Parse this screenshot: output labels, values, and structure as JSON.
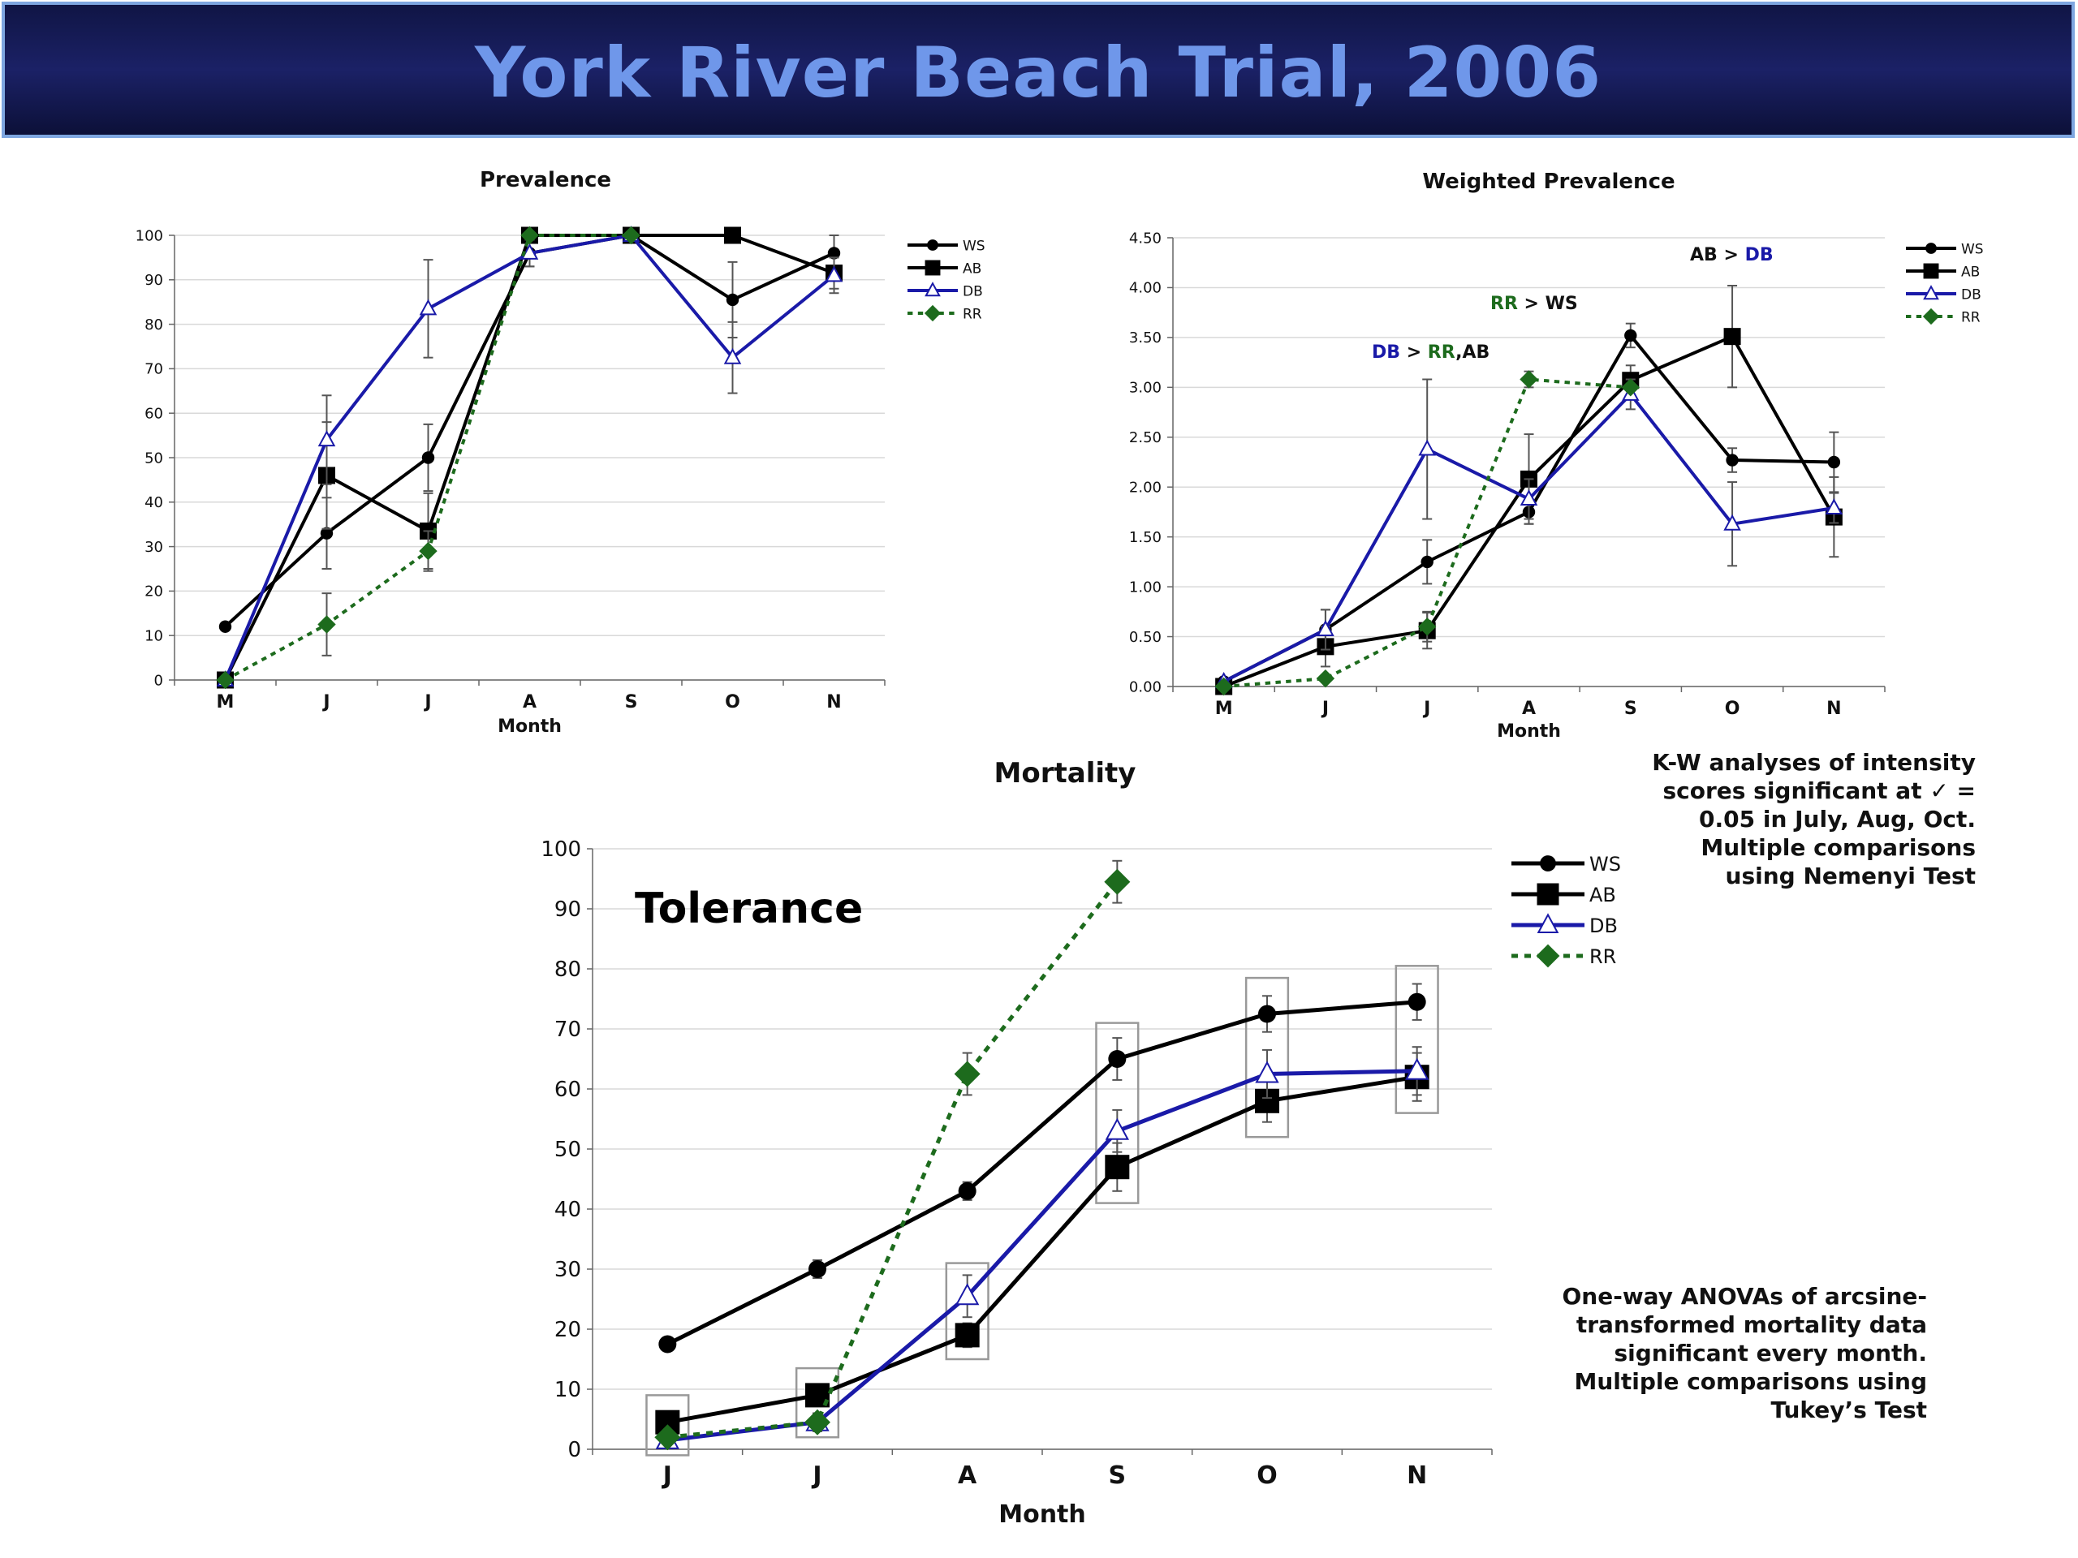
{
  "header": {
    "title": "York River Beach Trial, 2006"
  },
  "notes": {
    "kw": "K-W analyses of intensity scores significant at ✓ = 0.05 in July, Aug, Oct. Multiple comparisons using Nemenyi Test",
    "anova": "One-way ANOVAs of arcsine-transformed mortality data significant every month. Multiple comparisons using Tukey’s Test",
    "tolerance": "Tolerance"
  },
  "annotations": {
    "ab_db": {
      "a": "AB",
      "op": " > ",
      "b": "DB"
    },
    "rr_ws": {
      "a": "RR",
      "op": " > ",
      "b": "WS"
    },
    "db_rr_ab": {
      "a": "DB",
      "op": " > ",
      "b": "RR",
      "c": ",AB"
    }
  },
  "colors": {
    "WS": "#000000",
    "AB": "#000000",
    "DB": "#1a1aa8",
    "RR": "#1d6b1d",
    "banner_text": "#6f97ea"
  },
  "chart_data": [
    {
      "id": "prevalence",
      "type": "line",
      "title": "Prevalence",
      "xlabel": "Month",
      "ylabel": "",
      "categories": [
        "M",
        "J",
        "J",
        "A",
        "S",
        "O",
        "N"
      ],
      "ylim": [
        0,
        100
      ],
      "yticks": [
        "0",
        "10",
        "20",
        "30",
        "40",
        "50",
        "60",
        "70",
        "80",
        "90",
        "100"
      ],
      "legend_position": "top-right",
      "grid": true,
      "series": [
        {
          "name": "WS",
          "values": [
            12,
            33,
            50,
            96,
            100,
            85.5,
            96
          ],
          "err": [
            0,
            8,
            7.5,
            3,
            0,
            8.5,
            4
          ]
        },
        {
          "name": "AB",
          "values": [
            0,
            46,
            33.5,
            100,
            100,
            100,
            91.5
          ],
          "err": [
            0,
            12,
            8.5,
            0,
            0,
            0,
            3.5
          ]
        },
        {
          "name": "DB",
          "values": [
            0,
            54,
            83.5,
            96,
            100,
            72.5,
            91
          ],
          "err": [
            0,
            10,
            11,
            3,
            0,
            8,
            4
          ]
        },
        {
          "name": "RR",
          "values": [
            0,
            12.5,
            29,
            100,
            100,
            null,
            null
          ],
          "err": [
            0,
            7,
            4.5,
            0,
            0,
            0,
            0
          ]
        }
      ]
    },
    {
      "id": "weighted",
      "type": "line",
      "title": "Weighted Prevalence",
      "xlabel": "Month",
      "ylabel": "",
      "categories": [
        "M",
        "J",
        "J",
        "A",
        "S",
        "O",
        "N"
      ],
      "ylim": [
        0,
        4.5
      ],
      "yticks": [
        "0.00",
        "0.50",
        "1.00",
        "1.50",
        "2.00",
        "2.50",
        "3.00",
        "3.50",
        "4.00",
        "4.50"
      ],
      "legend_position": "top-right",
      "grid": true,
      "series": [
        {
          "name": "WS",
          "values": [
            0.05,
            0.57,
            1.25,
            1.75,
            3.52,
            2.27,
            2.25
          ],
          "err": [
            0,
            0.2,
            0.22,
            0.12,
            0.12,
            0.12,
            0.3
          ]
        },
        {
          "name": "AB",
          "values": [
            0,
            0.4,
            0.56,
            2.08,
            3.07,
            3.51,
            1.7
          ],
          "err": [
            0,
            0.2,
            0.18,
            0.45,
            0.15,
            0.51,
            0.4
          ]
        },
        {
          "name": "DB",
          "values": [
            0.05,
            0.57,
            2.38,
            1.88,
            2.93,
            1.63,
            1.79
          ],
          "err": [
            0,
            0.2,
            0.7,
            0.2,
            0.15,
            0.42,
            0.15
          ]
        },
        {
          "name": "RR",
          "values": [
            0,
            0.08,
            0.6,
            3.08,
            3.0,
            null,
            null
          ],
          "err": [
            0,
            0,
            0.15,
            0.08,
            0,
            0,
            0
          ]
        }
      ]
    },
    {
      "id": "mortality",
      "type": "line",
      "title": "Mortality",
      "xlabel": "Month",
      "ylabel": "",
      "categories": [
        "J",
        "J",
        "A",
        "S",
        "O",
        "N"
      ],
      "ylim": [
        0,
        100
      ],
      "yticks": [
        "0",
        "10",
        "20",
        "30",
        "40",
        "50",
        "60",
        "70",
        "80",
        "90",
        "100"
      ],
      "legend_position": "right",
      "grid": true,
      "series": [
        {
          "name": "WS",
          "values": [
            17.5,
            30,
            43,
            65,
            72.5,
            74.5
          ],
          "err": [
            0,
            1.5,
            1.5,
            3.5,
            3,
            3
          ]
        },
        {
          "name": "AB",
          "values": [
            4.5,
            9,
            19,
            47,
            58,
            62
          ],
          "err": [
            0,
            1,
            2,
            4,
            3.5,
            4
          ]
        },
        {
          "name": "DB",
          "values": [
            1.5,
            4.5,
            25.5,
            53,
            62.5,
            63
          ],
          "err": [
            0,
            1.5,
            3.5,
            3.5,
            4,
            4
          ]
        },
        {
          "name": "RR",
          "values": [
            2,
            4.5,
            62.5,
            94.5,
            null,
            null
          ],
          "err": [
            0,
            1.5,
            3.5,
            3.5,
            0,
            0
          ]
        }
      ],
      "significance_boxes_at": [
        "J",
        "J",
        "A",
        "S",
        "O",
        "N"
      ]
    }
  ]
}
